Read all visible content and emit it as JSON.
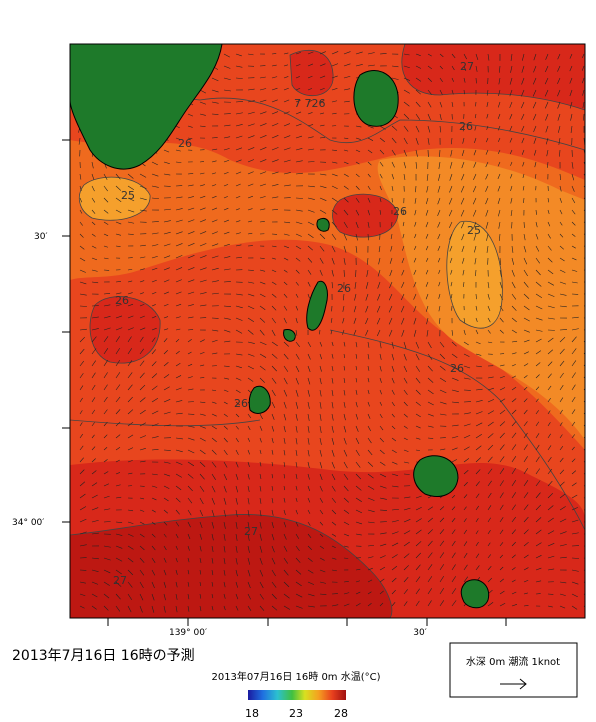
{
  "map": {
    "title": "2013年7月16日 16時の予測",
    "subtitle": "2013年07月16日 16時 0m 水温(°C)",
    "lat_labels": [
      "30′",
      "34° 00′"
    ],
    "lon_labels": [
      "139° 00′",
      "30′"
    ],
    "contour_labels": [
      "25",
      "26",
      "7 726",
      "27",
      "26",
      "26",
      "25",
      "26",
      "26",
      "26",
      "26",
      "27",
      "27"
    ],
    "colorbar_ticks": [
      "18",
      "23",
      "28"
    ],
    "legend": {
      "text": "水深 0m 潮流 1knot"
    }
  }
}
